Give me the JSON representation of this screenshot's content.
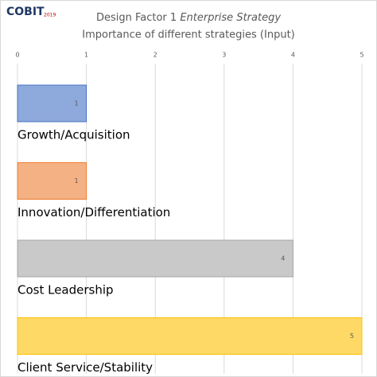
{
  "chart_data": {
    "type": "bar",
    "orientation": "horizontal",
    "logo": {
      "text": "COBIT",
      "superscript": "2019"
    },
    "title": "Design Factor 1",
    "title_emphasis": "Enterprise Strategy",
    "subtitle": "Importance of different strategies (Input)",
    "categories": [
      "Growth/Acquisition",
      "Innovation/Differentiation",
      "Cost Leadership",
      "Client Service/Stability"
    ],
    "values": [
      1,
      1,
      4,
      5
    ],
    "colors": [
      "#8ea9db",
      "#f4b183",
      "#c9c9c9",
      "#ffd966"
    ],
    "border_colors": [
      "#4472c4",
      "#ed7d31",
      "#a5a5a5",
      "#ffc000"
    ],
    "xlim": [
      0,
      5
    ],
    "xticks": [
      0,
      1,
      2,
      3,
      4,
      5
    ],
    "grid": true
  }
}
